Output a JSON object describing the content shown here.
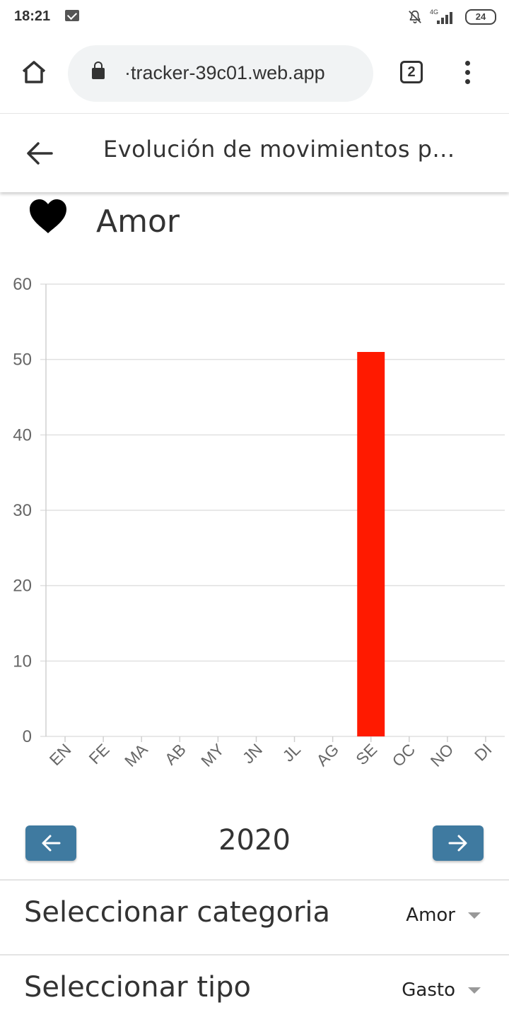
{
  "status_bar": {
    "time": "18:21",
    "network": "4G",
    "battery": "24",
    "icons": [
      "mail-icon",
      "bell-off-icon",
      "signal-icon",
      "battery-icon"
    ]
  },
  "browser": {
    "url": "·tracker-39c01.web.app",
    "tab_count": "2"
  },
  "header": {
    "title": "Evolución de movimientos p..."
  },
  "category": {
    "name": "Amor",
    "icon": "heart-icon"
  },
  "chart_data": {
    "type": "bar",
    "categories": [
      "EN",
      "FE",
      "MA",
      "AB",
      "MY",
      "JN",
      "JL",
      "AG",
      "SE",
      "OC",
      "NO",
      "DI"
    ],
    "values": [
      0,
      0,
      0,
      0,
      0,
      0,
      0,
      0,
      51,
      0,
      0,
      0
    ],
    "ylim": [
      0,
      60
    ],
    "yticks": [
      0,
      10,
      20,
      30,
      40,
      50,
      60
    ],
    "bar_color": "#ff1a00",
    "grid": true
  },
  "year_nav": {
    "year": "2020"
  },
  "selectors": {
    "category_label": "Seleccionar categoria",
    "category_value": "Amor",
    "type_label": "Seleccionar tipo",
    "type_value": "Gasto"
  },
  "colors": {
    "accent": "#3f7aa0",
    "bar": "#ff1a00"
  }
}
